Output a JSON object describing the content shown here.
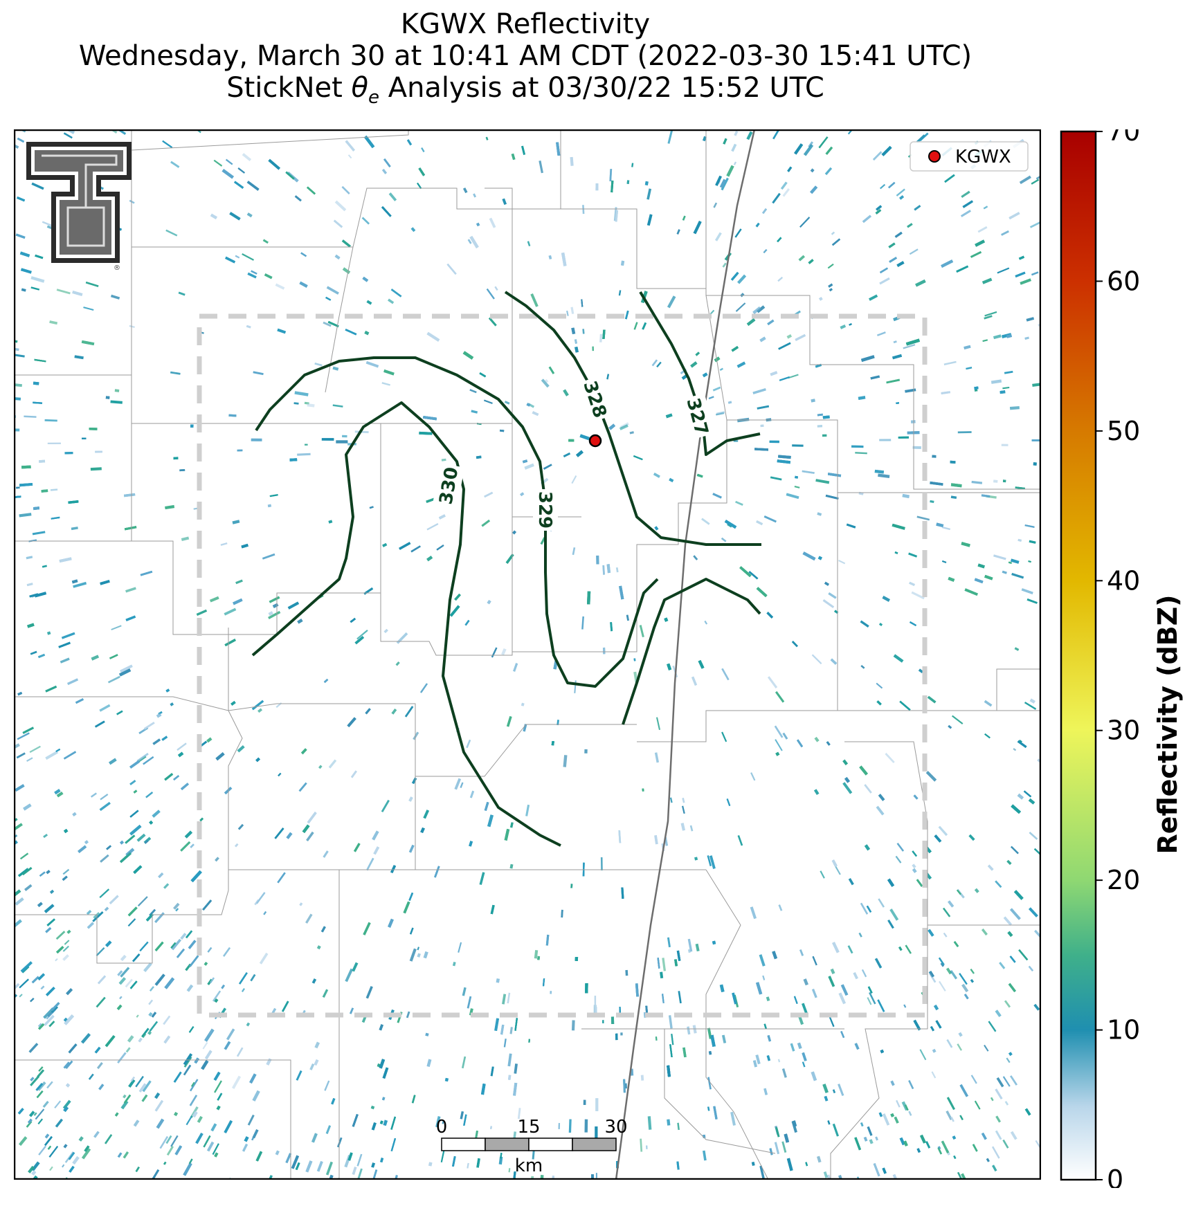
{
  "title": {
    "line1": "KGWX Reflectivity",
    "line2": "Wednesday, March 30 at 10:41 AM CDT (2022-03-30 15:41 UTC)",
    "line3_prefix": "StickNet ",
    "line3_symbol": "θ",
    "line3_subscript": "e",
    "line3_suffix": " Analysis at 03/30/22 15:52 UTC"
  },
  "legend": {
    "label": "KGWX",
    "marker_color": "#e01010"
  },
  "radar_site": {
    "name": "KGWX"
  },
  "contours": {
    "color": "#0d3f1f",
    "labels": [
      "330",
      "329",
      "328",
      "327"
    ]
  },
  "scale_bar": {
    "ticks": [
      "0",
      "15",
      "30"
    ],
    "unit": "km"
  },
  "colorbar": {
    "label": "Reflectivity (dBZ)",
    "ticks": [
      "0",
      "10",
      "20",
      "30",
      "40",
      "50",
      "60",
      "70"
    ],
    "min": 0,
    "max": 70,
    "colors": {
      "0": "#ffffff",
      "5": "#b9d6ea",
      "10": "#1f8fb0",
      "15": "#3fb08a",
      "20": "#8fd872",
      "30": "#eef55a",
      "40": "#e2b800",
      "50": "#d67a00",
      "60": "#cc3000",
      "70": "#a80000"
    }
  },
  "colors": {
    "analysis_box": "#cfcfcf",
    "state_boundary": "#6d6d6d",
    "county_boundary": "#9a9a9a",
    "logo_fill": "#6a6a6a"
  },
  "logo": {
    "name": "texas-tech-double-t-logo"
  }
}
